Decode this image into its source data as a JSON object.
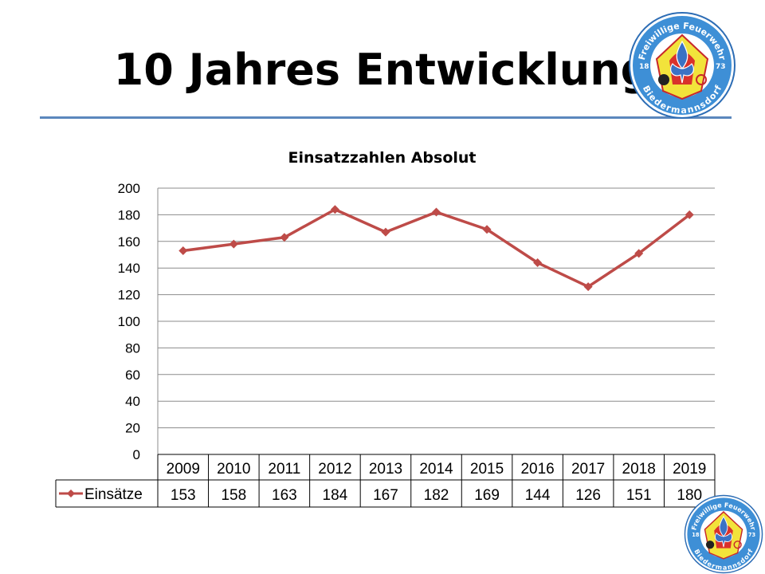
{
  "slide": {
    "title": "10 Jahres Entwicklung"
  },
  "logos": [
    {
      "icon": "fire-brigade-emblem",
      "text_top": "Freiwillige Feuerwehr",
      "text_bottom": "Biedermannsdorf",
      "year_left": "18",
      "year_right": "73"
    },
    {
      "icon": "fire-brigade-emblem",
      "text_top": "Freiwillige Feuerwehr",
      "text_bottom": "Biedermannsdorf",
      "year_left": "18",
      "year_right": "73"
    }
  ],
  "chart_data": {
    "type": "line",
    "title": "Einsatzzahlen Absolut",
    "xlabel": "",
    "ylabel": "",
    "categories": [
      "2009",
      "2010",
      "2011",
      "2012",
      "2013",
      "2014",
      "2015",
      "2016",
      "2017",
      "2018",
      "2019"
    ],
    "series": [
      {
        "name": "Einsätze",
        "values": [
          153,
          158,
          163,
          184,
          167,
          182,
          169,
          144,
          126,
          151,
          180
        ],
        "color": "#be4b48",
        "marker": "diamond"
      }
    ],
    "ylim": [
      0,
      200
    ],
    "yticks": [
      "0",
      "20",
      "40",
      "60",
      "80",
      "100",
      "120",
      "140",
      "160",
      "180",
      "200"
    ],
    "grid": true,
    "legend": "data-table-left",
    "data_table": true
  }
}
